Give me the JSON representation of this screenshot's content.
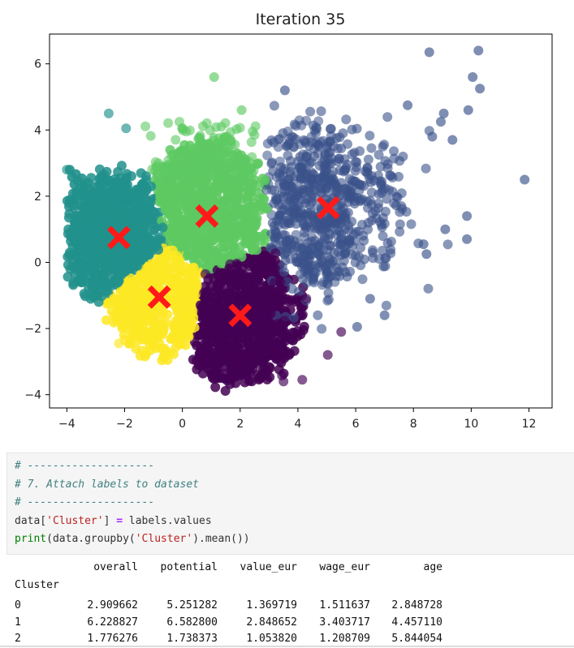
{
  "chart_data": {
    "type": "scatter",
    "title": "Iteration 35",
    "xlabel": "",
    "ylabel": "",
    "xlim": [
      -4.6,
      12.8
    ],
    "ylim": [
      -4.4,
      6.9
    ],
    "xticks": [
      -4,
      -2,
      0,
      2,
      4,
      6,
      8,
      10,
      12
    ],
    "yticks": [
      -4,
      -2,
      0,
      2,
      4,
      6
    ],
    "grid": false,
    "clusters": [
      {
        "name": "",
        "color": "#440154",
        "centroid": [
          2.0,
          -1.6
        ]
      },
      {
        "name": "",
        "color": "#3b528b",
        "centroid": [
          5.05,
          1.65
        ]
      },
      {
        "name": "",
        "color": "#21918c",
        "centroid": [
          -2.2,
          0.75
        ]
      },
      {
        "name": "",
        "color": "#5ec962",
        "centroid": [
          0.85,
          1.4
        ]
      },
      {
        "name": "",
        "color": "#fde725",
        "centroid": [
          -0.8,
          -1.05
        ]
      }
    ],
    "centroid_marker": {
      "shape": "X",
      "color": "#ff1a1a"
    },
    "outlier_points": [
      [
        11.85,
        2.5
      ],
      [
        10.25,
        6.4
      ],
      [
        8.55,
        6.35
      ],
      [
        10.05,
        5.6
      ],
      [
        10.3,
        5.25
      ],
      [
        9.9,
        4.6
      ],
      [
        7.8,
        4.75
      ],
      [
        9.05,
        4.5
      ],
      [
        8.95,
        4.25
      ],
      [
        8.65,
        3.8
      ],
      [
        9.35,
        3.7
      ],
      [
        9.85,
        1.4
      ],
      [
        9.85,
        0.7
      ],
      [
        9.1,
        1.0
      ],
      [
        8.35,
        0.55
      ],
      [
        8.45,
        0.25
      ],
      [
        7.0,
        -1.6
      ],
      [
        1.1,
        5.6
      ],
      [
        2.05,
        4.6
      ],
      [
        3.55,
        5.2
      ],
      [
        -2.55,
        4.5
      ],
      [
        -1.95,
        4.05
      ],
      [
        -4.0,
        2.8
      ],
      [
        -2.2,
        -2.45
      ],
      [
        -2.0,
        -2.35
      ],
      [
        4.15,
        -3.55
      ],
      [
        3.5,
        -3.6
      ],
      [
        5.5,
        -2.1
      ],
      [
        6.05,
        -1.95
      ],
      [
        6.5,
        -1.1
      ]
    ]
  },
  "code": {
    "line1": "# --------------------",
    "line2": "# 7. Attach labels to dataset",
    "line3": "# --------------------",
    "line4_a": "data[",
    "line4_b": "'Cluster'",
    "line4_c": "] ",
    "line4_d": "=",
    "line4_e": " labels",
    "line4_f": ".",
    "line4_g": "values",
    "line5_a": "print",
    "line5_b": "(data",
    "line5_c": ".",
    "line5_d": "groupby(",
    "line5_e": "'Cluster'",
    "line5_f": ")",
    "line5_g": ".",
    "line5_h": "mean())"
  },
  "output": {
    "columns": [
      "overall",
      "potential",
      "value_eur",
      "wage_eur",
      "age"
    ],
    "index_name": "Cluster",
    "rows": [
      {
        "index": "0",
        "values": [
          "2.909662",
          "5.251282",
          "1.369719",
          "1.511637",
          "2.848728"
        ]
      },
      {
        "index": "1",
        "values": [
          "6.228827",
          "6.582800",
          "2.848652",
          "3.403717",
          "4.457110"
        ]
      },
      {
        "index": "2",
        "values": [
          "1.776276",
          "1.738373",
          "1.053820",
          "1.208709",
          "5.844054"
        ]
      }
    ]
  }
}
